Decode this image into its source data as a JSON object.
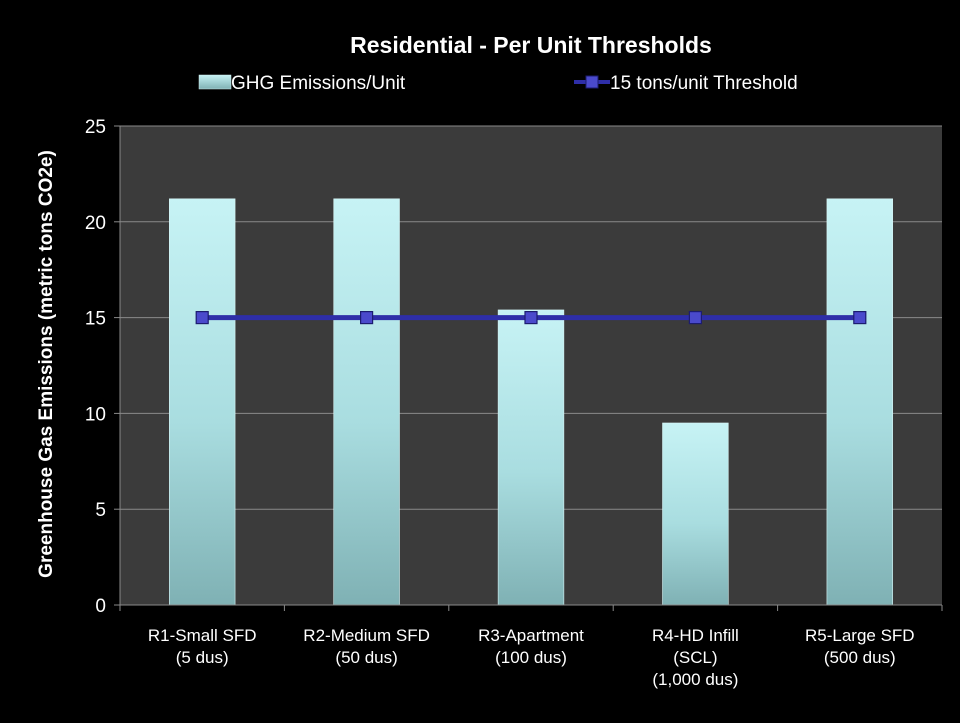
{
  "chart_data": {
    "type": "bar",
    "title": "Residential - Per Unit Thresholds",
    "ylabel": "Greenhouse Gas Emissions (metric tons CO2e)",
    "xlabel": "",
    "ylim": [
      0,
      25
    ],
    "yticks": [
      "0",
      "5",
      "10",
      "15",
      "20",
      "25"
    ],
    "categories": [
      [
        "R1-Small SFD",
        "(5 dus)"
      ],
      [
        "R2-Medium SFD",
        "(50 dus)"
      ],
      [
        "R3-Apartment",
        "(100 dus)"
      ],
      [
        "R4-HD Infill",
        "(SCL)",
        "(1,000  dus)"
      ],
      [
        "R5-Large SFD",
        "(500 dus)"
      ]
    ],
    "series": [
      {
        "name": "GHG Emissions/Unit",
        "type": "bar",
        "values": [
          21.2,
          21.2,
          15.4,
          9.5,
          21.2
        ],
        "color": "#b5ecef"
      },
      {
        "name": "15 tons/unit Threshold",
        "type": "line",
        "values": [
          15,
          15,
          15,
          15,
          15
        ],
        "color": "#2e2ea8"
      }
    ],
    "legend_position": "top",
    "grid": true,
    "colors": {
      "background": "#000000",
      "plot_area": "#3b3b3b",
      "gridline": "#8a8a8a",
      "text": "#ffffff"
    }
  }
}
